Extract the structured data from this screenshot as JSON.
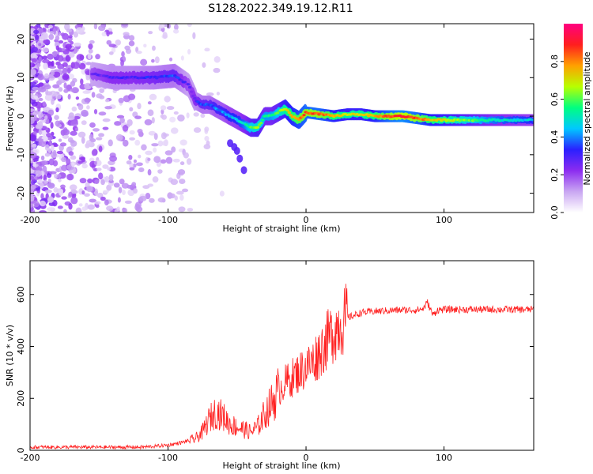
{
  "title": "S128.2022.349.19.12.R11",
  "chart_data": [
    {
      "type": "heatmap",
      "xlabel": "Height of straight line (km)",
      "ylabel": "Frequency (Hz)",
      "xlim": [
        -200,
        165
      ],
      "ylim": [
        -25,
        24
      ],
      "xticks": [
        -200,
        -100,
        0,
        100
      ],
      "yticks": [
        -20,
        -10,
        0,
        10,
        20
      ],
      "colorbar": {
        "label": "Normalized spectral amplitude",
        "range": [
          0,
          1
        ],
        "ticks": [
          0.0,
          0.2,
          0.4,
          0.6,
          0.8
        ],
        "colors": [
          "#ffffff",
          "#c9a6f2",
          "#8c2cf0",
          "#2a20ff",
          "#00c8ff",
          "#00ff80",
          "#b8ff00",
          "#ffa000",
          "#ff1e1e",
          "#ff0080"
        ]
      },
      "ridge": {
        "x": [
          -155,
          -140,
          -125,
          -110,
          -95,
          -85,
          -80,
          -75,
          -70,
          -65,
          -60,
          -55,
          -50,
          -45,
          -40,
          -35,
          -30,
          -25,
          -20,
          -15,
          -10,
          -5,
          0,
          10,
          20,
          30,
          40,
          50,
          60,
          70,
          80,
          90,
          100,
          120,
          140,
          165
        ],
        "y": [
          11,
          10,
          10,
          10,
          10.5,
          8,
          4,
          3,
          3,
          2,
          1,
          0,
          -1,
          -2,
          -3,
          -3,
          0,
          0,
          1,
          2,
          0,
          -1,
          1,
          0.5,
          0,
          0.5,
          0.5,
          0,
          0,
          0,
          -0.5,
          -1,
          -1,
          -1,
          -1,
          -1
        ],
        "amp": [
          0.25,
          0.3,
          0.3,
          0.32,
          0.35,
          0.25,
          0.3,
          0.35,
          0.35,
          0.4,
          0.4,
          0.45,
          0.45,
          0.5,
          0.6,
          0.65,
          0.55,
          0.55,
          0.6,
          0.7,
          0.75,
          0.8,
          0.85,
          0.85,
          0.75,
          0.7,
          0.7,
          0.75,
          0.85,
          0.9,
          0.85,
          0.75,
          0.7,
          0.6,
          0.5,
          0.45
        ]
      },
      "branch": {
        "x": [
          -55,
          -52,
          -50,
          -48,
          -45
        ],
        "y": [
          -7,
          -8,
          -9,
          -11,
          -14
        ]
      }
    },
    {
      "type": "line",
      "xlabel": "Height of straight line (km)",
      "ylabel": "SNR (10 * v/v)",
      "xlim": [
        -200,
        165
      ],
      "ylim": [
        0,
        730
      ],
      "xticks": [
        -200,
        -100,
        0,
        100
      ],
      "yticks": [
        0,
        200,
        400,
        600
      ],
      "series": [
        {
          "color": "#ff2020",
          "x": [
            -200,
            -180,
            -160,
            -140,
            -120,
            -110,
            -100,
            -90,
            -80,
            -75,
            -70,
            -65,
            -60,
            -55,
            -50,
            -45,
            -40,
            -35,
            -30,
            -25,
            -20,
            -15,
            -10,
            -5,
            0,
            5,
            10,
            15,
            20,
            25,
            30,
            40,
            50,
            60,
            70,
            80,
            85,
            88,
            90,
            92,
            95,
            100,
            110,
            120,
            130,
            140,
            150,
            160,
            165
          ],
          "y": [
            12,
            12,
            12,
            12,
            12,
            15,
            20,
            30,
            45,
            70,
            120,
            150,
            130,
            100,
            90,
            80,
            70,
            90,
            140,
            180,
            230,
            260,
            280,
            300,
            320,
            340,
            380,
            420,
            460,
            490,
            510,
            530,
            535,
            538,
            540,
            540,
            545,
            570,
            545,
            520,
            540,
            542,
            542,
            542,
            542,
            542,
            542,
            542,
            542
          ]
        }
      ]
    }
  ]
}
